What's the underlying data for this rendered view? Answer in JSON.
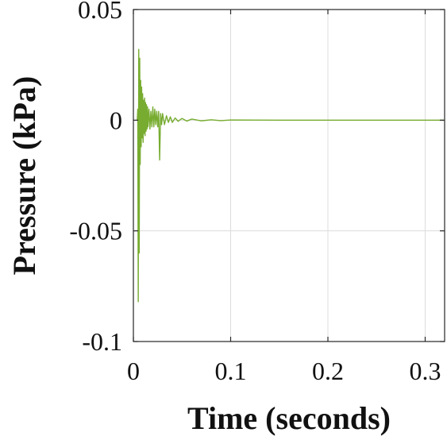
{
  "chart_data": {
    "type": "line",
    "title": "",
    "xlabel": "Time (seconds)",
    "ylabel": "Pressure (kPa)",
    "xlim": [
      0,
      0.32
    ],
    "ylim": [
      -0.1,
      0.05
    ],
    "grid": true,
    "x_ticks": [
      0,
      0.1,
      0.2,
      0.3
    ],
    "x_tick_labels": [
      "0",
      "0.1",
      "0.2",
      "0.3"
    ],
    "y_ticks": [
      0.05,
      0,
      -0.05,
      -0.1
    ],
    "y_tick_labels": [
      "0.05",
      "0",
      "-0.05",
      "-0.1"
    ],
    "series": [
      {
        "color": "#77ac30",
        "x": [
          0.004,
          0.0045,
          0.005,
          0.0055,
          0.006,
          0.0065,
          0.007,
          0.0075,
          0.008,
          0.0085,
          0.009,
          0.0095,
          0.01,
          0.0105,
          0.011,
          0.0115,
          0.012,
          0.0125,
          0.013,
          0.0135,
          0.014,
          0.0145,
          0.015,
          0.016,
          0.017,
          0.018,
          0.019,
          0.02,
          0.021,
          0.022,
          0.023,
          0.024,
          0.025,
          0.026,
          0.027,
          0.028,
          0.029,
          0.03,
          0.032,
          0.034,
          0.036,
          0.038,
          0.04,
          0.043,
          0.046,
          0.05,
          0.055,
          0.06,
          0.07,
          0.08,
          0.09,
          0.1,
          0.15,
          0.2,
          0.25,
          0.3,
          0.32
        ],
        "y": [
          0,
          0.005,
          -0.082,
          0.032,
          -0.06,
          0.028,
          -0.02,
          0.018,
          -0.012,
          0.015,
          -0.008,
          0.012,
          -0.01,
          0.009,
          -0.006,
          0.01,
          -0.007,
          0.008,
          -0.005,
          0.007,
          -0.004,
          0.006,
          -0.003,
          0.005,
          -0.004,
          0.004,
          -0.003,
          0.006,
          -0.003,
          0.005,
          -0.002,
          0.004,
          -0.003,
          0.004,
          -0.018,
          0.003,
          -0.002,
          0.003,
          -0.002,
          0.002,
          -0.001,
          0.0015,
          -0.001,
          0.001,
          -0.0005,
          0.0008,
          -0.0004,
          0.0005,
          -0.0003,
          0.0002,
          -0.0002,
          0.0001,
          0,
          0,
          0,
          0,
          0
        ]
      }
    ]
  }
}
